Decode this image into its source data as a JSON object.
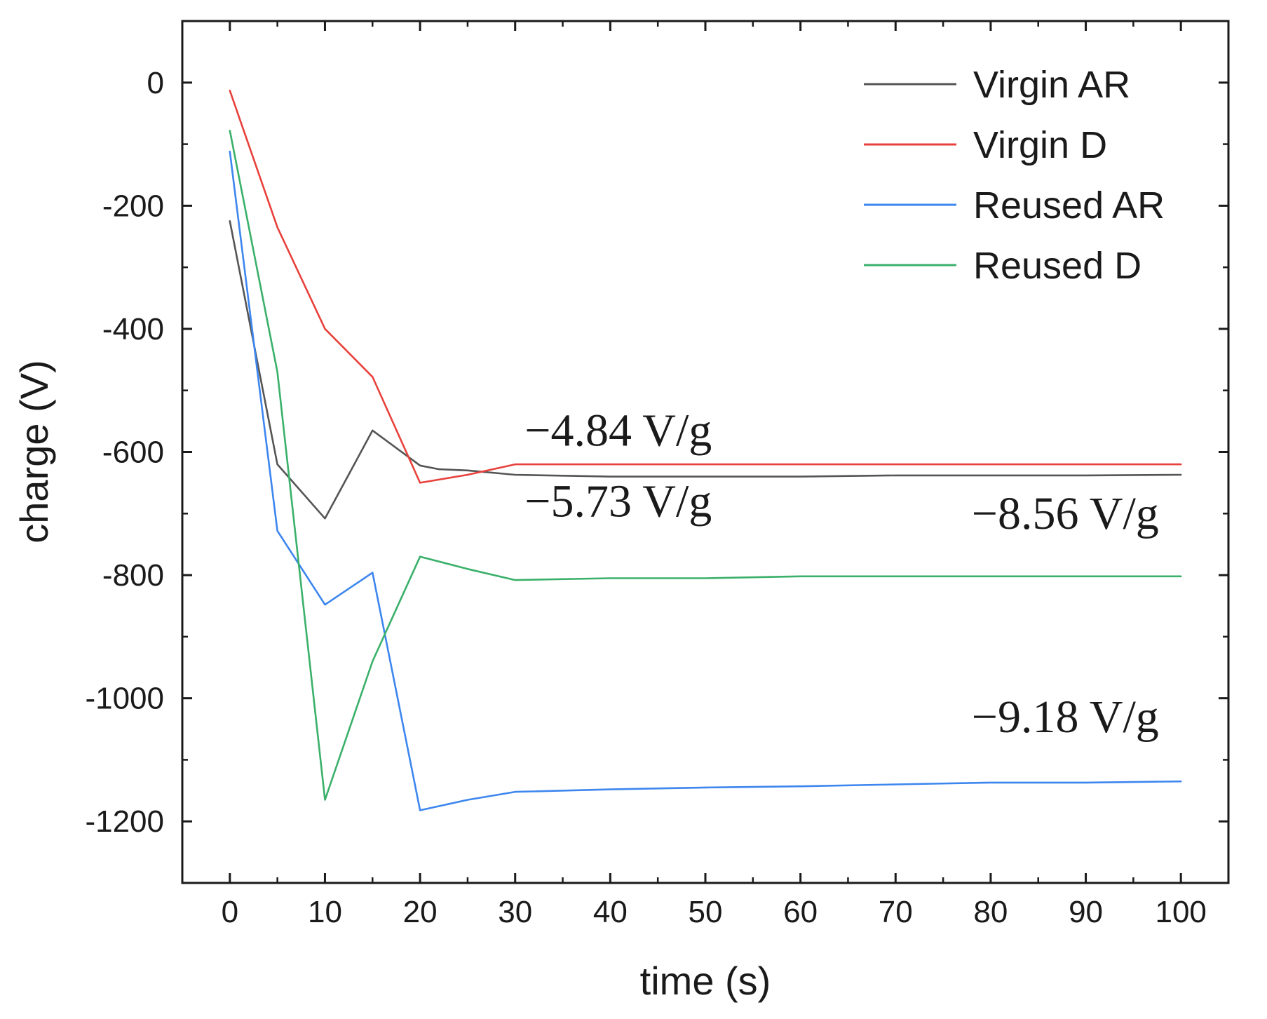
{
  "chart_data": {
    "type": "line",
    "title": "",
    "xlabel": "time (s)",
    "ylabel": "charge (V)",
    "xlim": [
      -5,
      105
    ],
    "ylim": [
      -1300,
      100
    ],
    "xticks": [
      0,
      10,
      20,
      30,
      40,
      50,
      60,
      70,
      80,
      90,
      100
    ],
    "yticks": [
      0,
      -200,
      -400,
      -600,
      -800,
      -1000,
      -1200
    ],
    "xtick_labels": [
      "0",
      "10",
      "20",
      "30",
      "40",
      "50",
      "60",
      "70",
      "80",
      "90",
      "100"
    ],
    "ytick_labels": [
      "0",
      "-200",
      "-400",
      "-600",
      "-800",
      "-1000",
      "-1200"
    ],
    "legend_position": "top-right",
    "grid": false,
    "series": [
      {
        "name": "Virgin AR",
        "color": "#555555",
        "x": [
          0,
          5,
          10,
          15,
          20,
          22,
          25,
          30,
          40,
          50,
          60,
          70,
          80,
          90,
          100
        ],
        "y": [
          -225,
          -620,
          -708,
          -565,
          -622,
          -628,
          -630,
          -637,
          -640,
          -640,
          -640,
          -638,
          -638,
          -638,
          -637
        ]
      },
      {
        "name": "Virgin D",
        "color": "#e8413c",
        "x": [
          0,
          5,
          10,
          15,
          20,
          25,
          30,
          40,
          50,
          60,
          70,
          80,
          90,
          100
        ],
        "y": [
          -13,
          -235,
          -400,
          -478,
          -650,
          -637,
          -620,
          -620,
          -620,
          -620,
          -620,
          -620,
          -620,
          -620
        ]
      },
      {
        "name": "Reused AR",
        "color": "#3d86ee",
        "x": [
          0,
          5,
          10,
          15,
          20,
          25,
          30,
          40,
          50,
          60,
          70,
          80,
          90,
          100
        ],
        "y": [
          -112,
          -728,
          -848,
          -796,
          -1182,
          -1165,
          -1152,
          -1148,
          -1145,
          -1143,
          -1140,
          -1137,
          -1137,
          -1135
        ]
      },
      {
        "name": "Reused D",
        "color": "#3ab06a",
        "x": [
          0,
          5,
          10,
          15,
          20,
          25,
          30,
          40,
          50,
          60,
          70,
          80,
          90,
          100
        ],
        "y": [
          -78,
          -470,
          -1165,
          -940,
          -770,
          -790,
          -808,
          -805,
          -805,
          -802,
          -802,
          -802,
          -802,
          -802
        ]
      }
    ],
    "annotations": [
      {
        "text": "−4.84 V/g",
        "x": 31,
        "y": -590
      },
      {
        "text": "−5.73 V/g",
        "x": 31,
        "y": -705
      },
      {
        "text": "−8.56 V/g",
        "x": 78,
        "y": -725
      },
      {
        "text": "−9.18 V/g",
        "x": 78,
        "y": -1055
      }
    ]
  }
}
